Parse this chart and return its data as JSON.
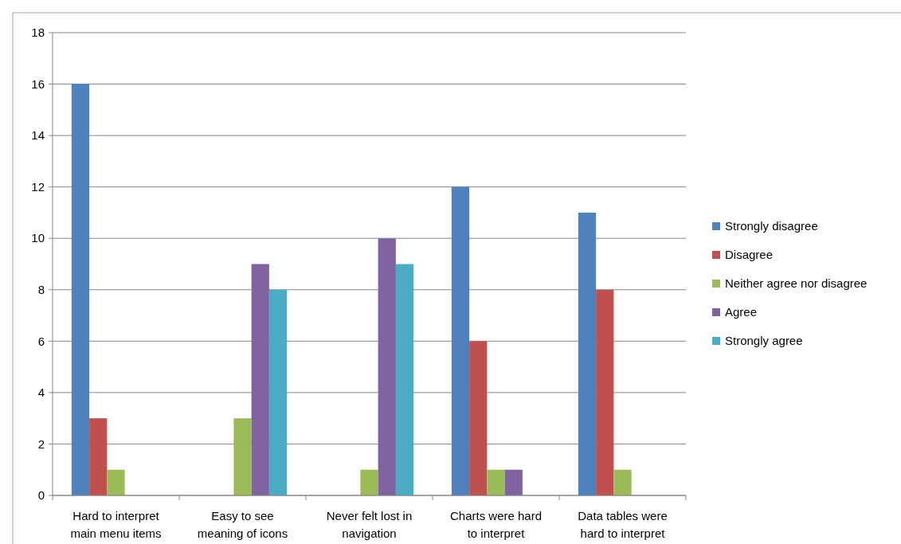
{
  "chart_data": {
    "type": "bar",
    "categories": [
      "Hard to interpret main menu items",
      "Easy to see meaning of icons",
      "Never felt lost in navigation",
      "Charts were hard to interpret",
      "Data tables were hard to interpret"
    ],
    "series": [
      {
        "name": "Strongly disagree",
        "color": "#4f81bd",
        "values": [
          16,
          0,
          0,
          12,
          11
        ]
      },
      {
        "name": "Disagree",
        "color": "#c0504d",
        "values": [
          3,
          0,
          0,
          6,
          8
        ]
      },
      {
        "name": "Neither agree nor disagree",
        "color": "#9bbb59",
        "values": [
          1,
          3,
          1,
          1,
          1
        ]
      },
      {
        "name": "Agree",
        "color": "#8064a2",
        "values": [
          0,
          9,
          10,
          1,
          0
        ]
      },
      {
        "name": "Strongly agree",
        "color": "#4bacc6",
        "values": [
          0,
          8,
          9,
          0,
          0
        ]
      }
    ],
    "ylim": [
      0,
      18
    ],
    "yticks": [
      0,
      2,
      4,
      6,
      8,
      10,
      12,
      14,
      16,
      18
    ],
    "grid": "y",
    "legend": "right"
  }
}
